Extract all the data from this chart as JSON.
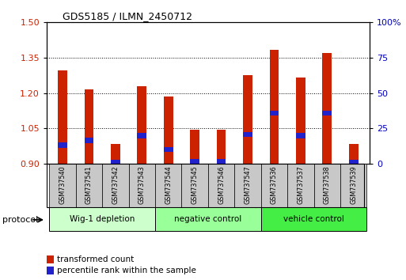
{
  "title": "GDS5185 / ILMN_2450712",
  "samples": [
    "GSM737540",
    "GSM737541",
    "GSM737542",
    "GSM737543",
    "GSM737544",
    "GSM737545",
    "GSM737546",
    "GSM737547",
    "GSM737536",
    "GSM737537",
    "GSM737538",
    "GSM737539"
  ],
  "transformed_count": [
    1.295,
    1.215,
    0.985,
    1.23,
    1.185,
    1.045,
    1.045,
    1.275,
    1.385,
    1.265,
    1.37,
    0.985
  ],
  "percentile_rank_val": [
    0.98,
    1.0,
    0.905,
    1.02,
    0.96,
    0.91,
    0.91,
    1.025,
    1.115,
    1.02,
    1.115,
    0.905
  ],
  "ylim_left": [
    0.9,
    1.5
  ],
  "ylim_right": [
    0,
    100
  ],
  "yticks_left": [
    0.9,
    1.05,
    1.2,
    1.35,
    1.5
  ],
  "yticks_right": [
    0,
    25,
    50,
    75,
    100
  ],
  "ytick_labels_right": [
    "0",
    "25",
    "50",
    "75",
    "100%"
  ],
  "groups": [
    {
      "label": "Wig-1 depletion",
      "start": 0,
      "end": 3,
      "color": "#ccffcc"
    },
    {
      "label": "negative control",
      "start": 4,
      "end": 7,
      "color": "#99ff99"
    },
    {
      "label": "vehicle control",
      "start": 8,
      "end": 11,
      "color": "#44ee44"
    }
  ],
  "bar_color_red": "#cc2200",
  "bar_color_blue": "#2222cc",
  "bar_bottom": 0.9,
  "bar_width": 0.35,
  "tick_bg_color": "#c8c8c8",
  "protocol_label": "protocol",
  "legend_items": [
    {
      "label": "transformed count",
      "color": "#cc2200"
    },
    {
      "label": "percentile rank within the sample",
      "color": "#2222cc"
    }
  ]
}
